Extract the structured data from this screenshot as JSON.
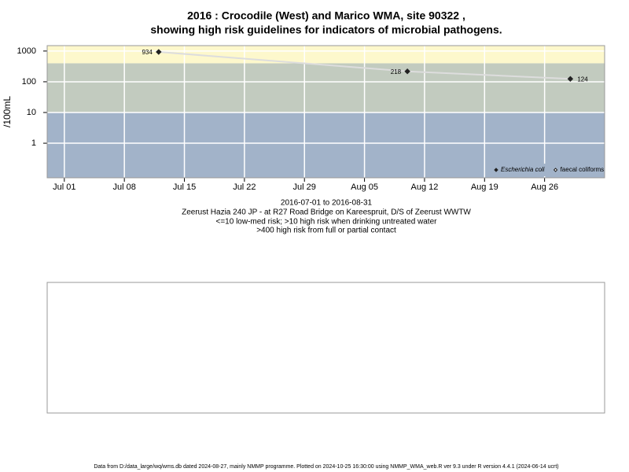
{
  "chart_data": {
    "type": "line",
    "title": "2016 : Crocodile (West) and Marico WMA, site 90322 ,",
    "subtitle": "showing high risk guidelines for indicators of microbial pathogens.",
    "y_label": "/100mL",
    "log_y": true,
    "grid": true,
    "legend_position": "bottom-right",
    "x": [
      "2016-07-12",
      "2016-08-10",
      "2016-08-29"
    ],
    "series": [
      {
        "name": "Escherichia coli",
        "color": "#222222",
        "values": [
          934,
          218,
          124
        ],
        "line_color": "#dddddd",
        "filled": true
      },
      {
        "name": "faecal coliforms",
        "color": "#222222",
        "values": [
          null,
          null,
          null
        ],
        "filled": false
      }
    ],
    "xlim": [
      "2016-06-29",
      "2016-09-02"
    ],
    "xticks": [
      {
        "value": "2016-07-01",
        "label": "Jul 01"
      },
      {
        "value": "2016-07-08",
        "label": "Jul 08"
      },
      {
        "value": "2016-07-15",
        "label": "Jul 15"
      },
      {
        "value": "2016-07-22",
        "label": "Jul 22"
      },
      {
        "value": "2016-07-29",
        "label": "Jul 29"
      },
      {
        "value": "2016-08-05",
        "label": "Aug 05"
      },
      {
        "value": "2016-08-12",
        "label": "Aug 12"
      },
      {
        "value": "2016-08-19",
        "label": "Aug 19"
      },
      {
        "value": "2016-08-26",
        "label": "Aug 26"
      }
    ],
    "ylim": [
      0.075,
      1500
    ],
    "yticks": [
      1,
      10,
      100,
      1000
    ],
    "thresholds": [
      10,
      400
    ],
    "band_colors": [
      "#a2b3c9",
      "#c2cbbf",
      "#fdf8cc"
    ],
    "date_range": "2016-07-01 to 2016-08-31",
    "site_description": "Zeerust Hazia 240 JP - at R27 Road Bridge on Kareespruit, D/S of Zeerust WWTW",
    "guideline_1": "<=10 low-med risk; >10 high risk when drinking untreated water",
    "guideline_2": ">400 high risk from full or partial contact",
    "footnote": "Data from D:/data_large/wq/wms.db dated 2024-08-27, mainly NMMP programme. Plotted on 2024-10-25 16:30:00 using NMMP_WMA_web.R ver 9.3 under R version 4.4.1 (2024-06-14 ucrt)"
  }
}
